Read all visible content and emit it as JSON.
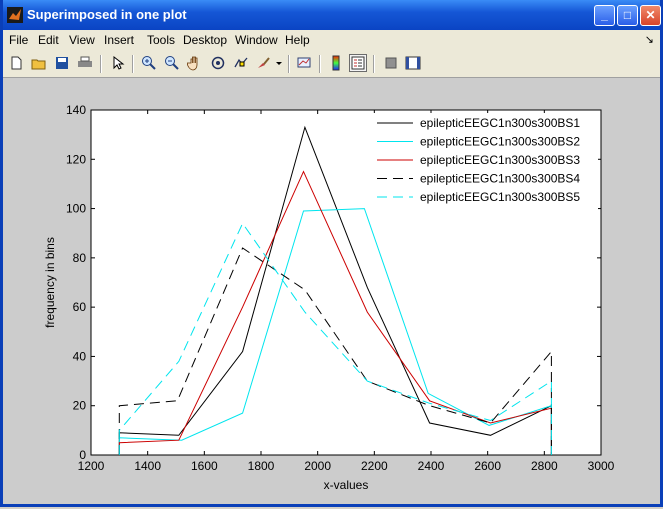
{
  "window": {
    "title": "Superimposed in one plot"
  },
  "titlebar_buttons": {
    "minimize": "_",
    "maximize": "□",
    "close": "✕"
  },
  "menubar": {
    "items": [
      "File",
      "Edit",
      "View",
      "Insert",
      "Tools",
      "Desktop",
      "Window",
      "Help"
    ],
    "dock_arrow": "↘"
  },
  "toolbar": {
    "tools": [
      "new-figure-icon",
      "open-file-icon",
      "save-icon",
      "print-icon",
      "pointer-icon",
      "zoom-in-icon",
      "zoom-out-icon",
      "pan-hand-icon",
      "rotate-3d-icon",
      "data-cursor-icon",
      "brush-icon",
      "brush-dropdown-icon",
      "link-plot-icon",
      "colorbar-icon",
      "legend-icon",
      "hide-plot-tools-icon",
      "show-plot-tools-icon"
    ]
  },
  "chart_data": {
    "type": "line",
    "xlabel": "x-values",
    "ylabel": "frequency in bins",
    "xlim": [
      1200,
      3000
    ],
    "ylim": [
      0,
      140
    ],
    "xticks": [
      1200,
      1400,
      1600,
      1800,
      2000,
      2200,
      2400,
      2600,
      2800,
      3000
    ],
    "yticks": [
      0,
      20,
      40,
      60,
      80,
      100,
      120,
      140
    ],
    "legend_position": "top-right",
    "series": [
      {
        "name": "epilepticEEGC1n300s300BS1",
        "color": "#000000",
        "dashed": false,
        "x": [
          1300,
          1300,
          1510,
          1735,
          1955,
          2175,
          2395,
          2610,
          2825,
          2825
        ],
        "y": [
          0,
          9,
          8,
          42,
          133,
          68,
          13,
          8,
          20,
          0
        ]
      },
      {
        "name": "epilepticEEGC1n300s300BS2",
        "color": "#00e5ee",
        "dashed": false,
        "x": [
          1300,
          1300,
          1520,
          1735,
          1950,
          2165,
          2390,
          2605,
          2825,
          2825
        ],
        "y": [
          0,
          7,
          6,
          17,
          99,
          100,
          25,
          12,
          20,
          0
        ]
      },
      {
        "name": "epilepticEEGC1n300s300BS3",
        "color": "#cc0000",
        "dashed": false,
        "x": [
          1300,
          1300,
          1510,
          1735,
          1950,
          2175,
          2395,
          2610,
          2825,
          2825
        ],
        "y": [
          0,
          5,
          6,
          60,
          115,
          58,
          22,
          13,
          19,
          0
        ]
      },
      {
        "name": "epilepticEEGC1n300s300BS4",
        "color": "#000000",
        "dashed": true,
        "x": [
          1300,
          1300,
          1505,
          1735,
          1955,
          2175,
          2395,
          2610,
          2825,
          2825
        ],
        "y": [
          0,
          20,
          22,
          84,
          67,
          30,
          20,
          13,
          42,
          0
        ]
      },
      {
        "name": "epilepticEEGC1n300s300BS5",
        "color": "#00e5ee",
        "dashed": true,
        "x": [
          1300,
          1300,
          1510,
          1735,
          1955,
          2175,
          2395,
          2610,
          2825,
          2825
        ],
        "y": [
          0,
          10,
          38,
          94,
          58,
          30,
          21,
          14,
          30,
          0
        ]
      }
    ]
  }
}
